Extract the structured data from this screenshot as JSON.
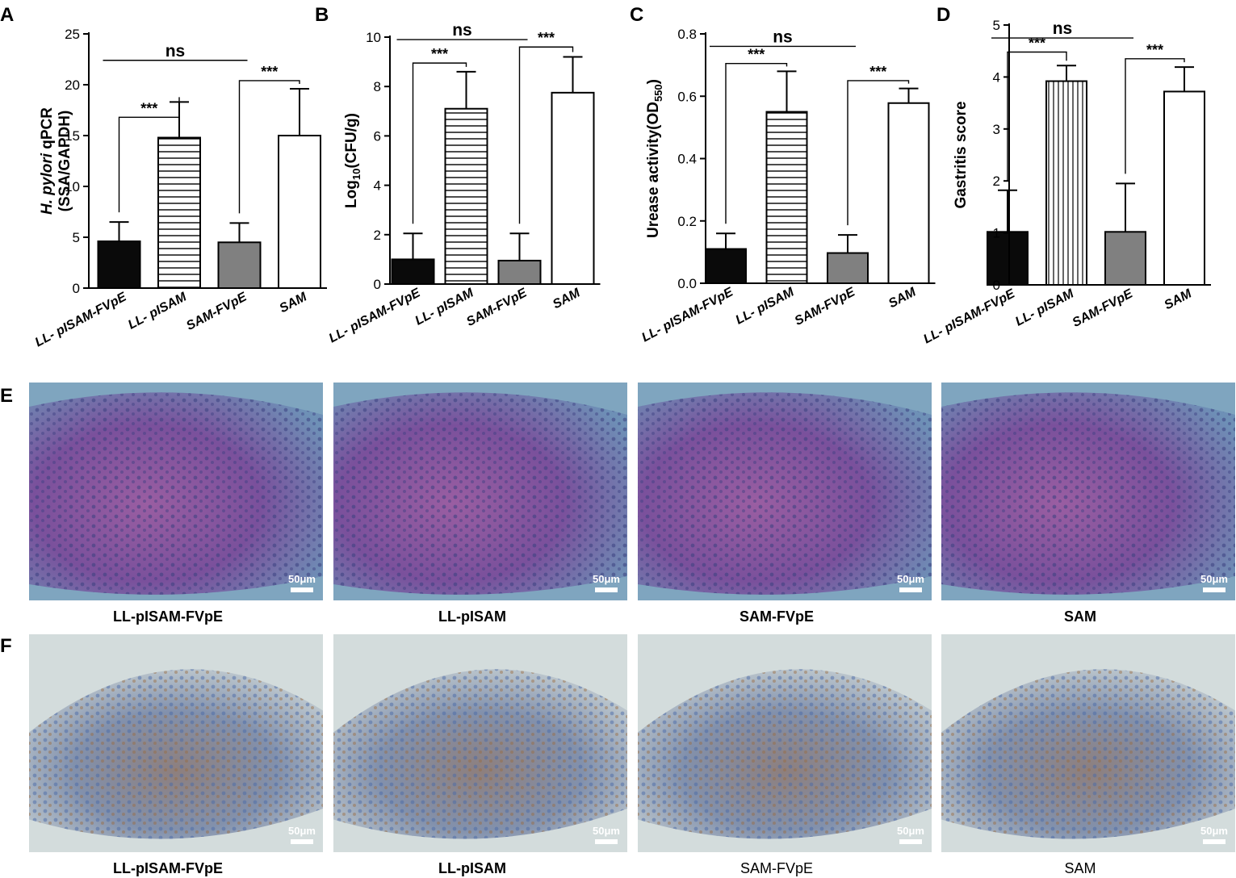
{
  "figure_caption": "",
  "colors": {
    "black_bar": "#0a0a0a",
    "gray_bar": "#808080",
    "white_bar": "#ffffff",
    "axis": "#000000",
    "he_stain_background": "#7fa5bf",
    "he_stain_tissue": "#8a5aa6",
    "ihc_background": "#d3dcdc",
    "ihc_tissue": "#7b8fb0",
    "ihc_positive": "#a06a3a"
  },
  "chart_data": [
    {
      "panel": "A",
      "type": "bar",
      "categories": [
        "LL- pISAM-FVpE",
        "LL- pISAM",
        "SAM-FVpE",
        "SAM"
      ],
      "values": [
        4.6,
        14.8,
        4.5,
        15.0
      ],
      "errors": [
        1.9,
        3.5,
        1.9,
        4.6
      ],
      "fills": [
        "black",
        "hstripe",
        "gray",
        "white"
      ],
      "ylabel_italic": "H. pylori",
      "ylabel_rest": " qPCR",
      "ylabel_line2": "(SSA/GAPDH)",
      "ylim": [
        0,
        25
      ],
      "yticks": [
        "0",
        "5",
        "10",
        "15",
        "20",
        "25"
      ],
      "ytick_values": [
        0,
        5,
        10,
        15,
        20,
        25
      ],
      "annotations": [
        {
          "text": "***",
          "from": 0,
          "to": 1,
          "level": 16.8
        },
        {
          "text": "***",
          "from": 2,
          "to": 3,
          "level": 20.4
        },
        {
          "text": "ns",
          "from": 0,
          "to": 2,
          "level": 22.4
        }
      ]
    },
    {
      "panel": "B",
      "type": "bar",
      "categories": [
        "LL- pISAM-FVpE",
        "LL- pISAM",
        "SAM-FVpE",
        "SAM"
      ],
      "values": [
        1.0,
        7.1,
        0.95,
        7.75
      ],
      "errors": [
        1.05,
        1.5,
        1.1,
        1.45
      ],
      "fills": [
        "black",
        "hstripe",
        "gray",
        "white"
      ],
      "ylabel": "Log",
      "ylabel_sub": "10",
      "ylabel_rest": "(CFU/g)",
      "ylim": [
        0,
        10
      ],
      "yticks": [
        "0",
        "2",
        "4",
        "6",
        "8",
        "10"
      ],
      "ytick_values": [
        0,
        2,
        4,
        6,
        8,
        10
      ],
      "annotations": [
        {
          "text": "***",
          "from": 0,
          "to": 1,
          "level": 8.95
        },
        {
          "text": "***",
          "from": 2,
          "to": 3,
          "level": 9.6
        },
        {
          "text": "ns",
          "from": 0,
          "to": 2,
          "level": 9.9
        }
      ]
    },
    {
      "panel": "C",
      "type": "bar",
      "categories": [
        "LL- pISAM-FVpE",
        "LL- pISAM",
        "SAM-FVpE",
        "SAM"
      ],
      "values": [
        0.11,
        0.55,
        0.097,
        0.578
      ],
      "errors": [
        0.05,
        0.13,
        0.058,
        0.047
      ],
      "fills": [
        "black",
        "hstripe",
        "gray",
        "white"
      ],
      "ylabel": "Urease activity(OD",
      "ylabel_sub": "550",
      "ylabel_rest": ")",
      "ylim": [
        0,
        0.8
      ],
      "yticks": [
        "0.0",
        "0.2",
        "0.4",
        "0.6",
        "0.8"
      ],
      "ytick_values": [
        0,
        0.2,
        0.4,
        0.6,
        0.8
      ],
      "annotations": [
        {
          "text": "***",
          "from": 0,
          "to": 1,
          "level": 0.705
        },
        {
          "text": "***",
          "from": 2,
          "to": 3,
          "level": 0.65
        },
        {
          "text": "ns",
          "from": 0,
          "to": 2,
          "level": 0.76
        }
      ]
    },
    {
      "panel": "D",
      "type": "bar",
      "categories": [
        "LL- pISAM-FVpE",
        "LL- pISAM",
        "SAM-FVpE",
        "SAM"
      ],
      "values": [
        1.02,
        3.92,
        1.02,
        3.72
      ],
      "errors": [
        0.8,
        0.3,
        0.93,
        0.47
      ],
      "fills": [
        "black",
        "vstripe",
        "gray",
        "white"
      ],
      "ylabel": "Gastritis score",
      "ylim": [
        0,
        5
      ],
      "yticks": [
        "0",
        "1",
        "2",
        "3",
        "4",
        "5"
      ],
      "ytick_values": [
        0,
        1,
        2,
        3,
        4,
        5
      ],
      "annotations": [
        {
          "text": "***",
          "from": 0,
          "to": 1,
          "level": 4.48
        },
        {
          "text": "***",
          "from": 2,
          "to": 3,
          "level": 4.35
        },
        {
          "text": "ns",
          "from": 0,
          "to": 2,
          "level": 4.75
        }
      ]
    }
  ],
  "micrographs": {
    "row_e": {
      "panel": "E",
      "stain": "he",
      "scale_bar": "50μm",
      "captions": [
        "LL-pISAM-FVpE",
        "LL-pISAM",
        "SAM-FVpE",
        "SAM"
      ]
    },
    "row_f": {
      "panel": "F",
      "stain": "ihc",
      "scale_bar": "50μm",
      "captions": [
        "LL-pISAM-FVpE",
        "LL-pISAM",
        "SAM-FVpE",
        "SAM"
      ]
    }
  }
}
